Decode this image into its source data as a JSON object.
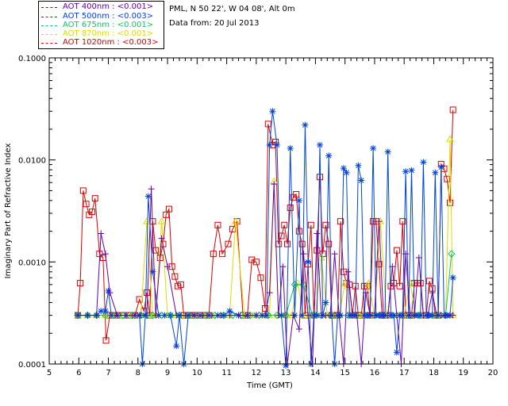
{
  "chart_data": {
    "type": "line",
    "title": "",
    "site": "PML, N 50 22', W 04 08', Alt 0m",
    "date": "Data from: 20 Jul 2013",
    "xlabel": "Time (GMT)",
    "ylabel": "Imaginary Part of Refractive Index",
    "xlim": [
      5,
      20
    ],
    "ylim": [
      0.0001,
      0.1
    ],
    "yscale": "log",
    "xticks": [
      "5",
      "6",
      "7",
      "8",
      "9",
      "10",
      "11",
      "12",
      "13",
      "14",
      "15",
      "16",
      "17",
      "18",
      "19",
      "20"
    ],
    "yticks": [
      "0.0001",
      "0.0010",
      "0.0100",
      "0.1000"
    ],
    "legend": [
      {
        "label": "AOT  400nm : <0.001>",
        "color": "#6600aa"
      },
      {
        "label": "AOT  500nm : <0.003>",
        "color": "#0044dd"
      },
      {
        "label": "AOT  675nm : <0.001>",
        "color": "#00cc66"
      },
      {
        "label": "AOT  870nm : <0.001>",
        "color": "#dddd00"
      },
      {
        "label": "AOT 1020nm : <0.003>",
        "color": "#dd0000"
      }
    ],
    "series": [
      {
        "name": "AOT 1020nm",
        "color": "#dd0000",
        "marker": "square",
        "x": [
          5.97,
          6.05,
          6.15,
          6.25,
          6.35,
          6.45,
          6.55,
          6.7,
          6.82,
          6.92,
          7.05,
          7.15,
          7.3,
          7.5,
          7.7,
          7.9,
          8.05,
          8.2,
          8.3,
          8.4,
          8.5,
          8.6,
          8.75,
          8.85,
          8.95,
          9.05,
          9.15,
          9.25,
          9.35,
          9.45,
          9.55,
          9.65,
          9.75,
          9.9,
          10.1,
          10.25,
          10.4,
          10.55,
          10.7,
          10.85,
          11.05,
          11.2,
          11.35,
          11.55,
          11.7,
          11.85,
          12.0,
          12.15,
          12.3,
          12.4,
          12.55,
          12.65,
          12.75,
          12.85,
          12.95,
          13.05,
          13.15,
          13.25,
          13.35,
          13.45,
          13.55,
          13.65,
          13.75,
          13.85,
          13.95,
          14.05,
          14.15,
          14.25,
          14.35,
          14.45,
          14.55,
          14.65,
          14.75,
          14.85,
          14.95,
          15.05,
          15.15,
          15.25,
          15.35,
          15.45,
          15.55,
          15.65,
          15.75,
          15.85,
          15.95,
          16.05,
          16.15,
          16.25,
          16.35,
          16.45,
          16.55,
          16.65,
          16.75,
          16.85,
          16.95,
          17.05,
          17.15,
          17.25,
          17.35,
          17.45,
          17.55,
          17.65,
          17.75,
          17.85,
          17.95,
          18.05,
          18.15,
          18.25,
          18.35,
          18.45,
          18.55,
          18.65
        ],
        "y": [
          0.0003,
          0.00062,
          0.005,
          0.0037,
          0.0029,
          0.0031,
          0.0042,
          0.0012,
          0.0011,
          0.00017,
          0.0003,
          0.0003,
          0.0003,
          0.0003,
          0.0003,
          0.0003,
          0.00043,
          0.00033,
          0.0005,
          0.0003,
          0.0025,
          0.0013,
          0.0011,
          0.0015,
          0.0029,
          0.0033,
          0.0009,
          0.00072,
          0.00058,
          0.0006,
          0.0003,
          0.0003,
          0.0003,
          0.0003,
          0.0003,
          0.0003,
          0.0003,
          0.0012,
          0.0023,
          0.0012,
          0.0015,
          0.0021,
          0.0025,
          0.0003,
          0.0003,
          0.00105,
          0.001,
          0.0007,
          0.00035,
          0.0225,
          0.014,
          0.015,
          0.0015,
          0.0018,
          0.0023,
          0.0015,
          0.0034,
          0.0043,
          0.0046,
          0.002,
          0.0015,
          0.0003,
          0.00095,
          0.0023,
          0.0003,
          0.0013,
          0.0068,
          0.0012,
          0.0023,
          0.0015,
          0.0003,
          0.0003,
          0.0003,
          0.0025,
          0.0008,
          0.00062,
          0.0006,
          0.0003,
          0.00058,
          0.0003,
          0.0003,
          0.00058,
          0.00058,
          0.0003,
          0.0025,
          0.0025,
          0.00095,
          0.0003,
          0.0003,
          0.0003,
          0.00058,
          0.00062,
          0.0013,
          0.00058,
          0.0025,
          0.0003,
          0.0003,
          0.0003,
          0.00062,
          0.00062,
          0.00062,
          0.0003,
          0.0003,
          0.00065,
          0.00055,
          0.0003,
          0.0003,
          0.0091,
          0.0082,
          0.0065,
          0.0038,
          0.031
        ]
      },
      {
        "name": "AOT 870nm",
        "color": "#dddd00",
        "marker": "triangle",
        "x": [
          5.97,
          6.3,
          6.6,
          6.9,
          7.2,
          7.5,
          7.8,
          8.1,
          8.3,
          8.5,
          8.6,
          8.8,
          9.0,
          9.3,
          9.6,
          9.9,
          10.2,
          10.5,
          10.8,
          11.1,
          11.3,
          11.6,
          11.9,
          12.2,
          12.45,
          12.6,
          12.75,
          12.9,
          13.05,
          13.2,
          13.4,
          13.6,
          13.8,
          14.0,
          14.2,
          14.4,
          14.6,
          14.8,
          15.0,
          15.2,
          15.4,
          15.6,
          15.8,
          16.0,
          16.2,
          16.4,
          16.6,
          16.8,
          17.0,
          17.2,
          17.4,
          17.6,
          17.8,
          18.0,
          18.2,
          18.4,
          18.55,
          18.65
        ],
        "y": [
          0.0003,
          0.0003,
          0.0003,
          0.0003,
          0.0003,
          0.0003,
          0.0003,
          0.0003,
          0.0025,
          0.0003,
          0.0003,
          0.0025,
          0.0003,
          0.0003,
          0.0003,
          0.0003,
          0.0003,
          0.0003,
          0.0003,
          0.0003,
          0.0025,
          0.0003,
          0.0003,
          0.0003,
          0.0003,
          0.0062,
          0.0003,
          0.0003,
          0.0003,
          0.0003,
          0.00062,
          0.0003,
          0.0003,
          0.0003,
          0.0011,
          0.0003,
          0.0003,
          0.0003,
          0.00062,
          0.0003,
          0.0003,
          0.0003,
          0.00062,
          0.0003,
          0.0025,
          0.0003,
          0.0003,
          0.0003,
          0.0003,
          0.00062,
          0.0003,
          0.0003,
          0.0003,
          0.0003,
          0.0003,
          0.0003,
          0.016,
          0.0003
        ]
      },
      {
        "name": "AOT 675nm",
        "color": "#00cc66",
        "marker": "diamond",
        "x": [
          5.97,
          6.3,
          6.6,
          6.9,
          7.2,
          7.5,
          7.8,
          8.1,
          8.3,
          8.5,
          8.8,
          9.1,
          9.4,
          9.7,
          10.0,
          10.3,
          10.6,
          10.9,
          11.2,
          11.5,
          11.8,
          12.1,
          12.4,
          12.7,
          13.0,
          13.3,
          13.6,
          13.9,
          14.2,
          14.5,
          14.8,
          15.1,
          15.4,
          15.7,
          16.0,
          16.3,
          16.6,
          16.9,
          17.2,
          17.5,
          17.8,
          18.1,
          18.4,
          18.6
        ],
        "y": [
          0.0003,
          0.0003,
          0.0003,
          0.0003,
          0.0003,
          0.0003,
          0.0003,
          0.0003,
          0.0003,
          0.0003,
          0.0003,
          0.0003,
          0.0003,
          0.0003,
          0.0003,
          0.0003,
          0.0003,
          0.0003,
          0.0003,
          0.0003,
          0.0003,
          0.0003,
          0.0003,
          0.0003,
          0.0003,
          0.0006,
          0.0006,
          0.0003,
          0.0003,
          0.0003,
          0.0003,
          0.0003,
          0.0003,
          0.0003,
          0.0003,
          0.0003,
          0.0003,
          0.0003,
          0.0003,
          0.0003,
          0.0003,
          0.0003,
          0.0003,
          0.0012
        ]
      },
      {
        "name": "AOT 500nm",
        "color": "#0044dd",
        "marker": "asterisk",
        "x": [
          5.97,
          6.3,
          6.6,
          6.75,
          6.9,
          7.0,
          7.1,
          7.3,
          7.6,
          7.9,
          8.05,
          8.15,
          8.25,
          8.35,
          8.5,
          8.7,
          8.9,
          9.1,
          9.3,
          9.4,
          9.55,
          9.7,
          9.9,
          10.1,
          10.4,
          10.7,
          10.9,
          11.1,
          11.4,
          11.7,
          12.0,
          12.2,
          12.35,
          12.45,
          12.55,
          12.7,
          12.85,
          13.0,
          13.15,
          13.3,
          13.45,
          13.55,
          13.65,
          13.75,
          13.85,
          13.95,
          14.05,
          14.15,
          14.25,
          14.35,
          14.45,
          14.55,
          14.65,
          14.75,
          14.85,
          14.95,
          15.05,
          15.15,
          15.25,
          15.35,
          15.45,
          15.55,
          15.65,
          15.75,
          15.85,
          15.95,
          16.05,
          16.15,
          16.25,
          16.35,
          16.45,
          16.55,
          16.65,
          16.75,
          16.85,
          16.95,
          17.05,
          17.15,
          17.25,
          17.35,
          17.45,
          17.55,
          17.65,
          17.75,
          17.85,
          17.95,
          18.05,
          18.15,
          18.25,
          18.35,
          18.45,
          18.55,
          18.65
        ],
        "y": [
          0.0003,
          0.0003,
          0.0003,
          0.00033,
          0.00033,
          0.00052,
          0.0003,
          0.0003,
          0.0003,
          0.0003,
          0.0003,
          0.0001,
          0.0003,
          0.0044,
          0.0008,
          0.0003,
          0.0003,
          0.0003,
          0.00015,
          0.0003,
          0.0001,
          0.0003,
          0.0003,
          0.0003,
          0.0003,
          0.0003,
          0.0003,
          0.00033,
          0.0003,
          0.0003,
          0.0003,
          0.0003,
          0.0003,
          0.014,
          0.03,
          0.014,
          0.0003,
          8e-05,
          0.013,
          0.0003,
          0.004,
          0.0003,
          0.022,
          0.001,
          0.0001,
          0.0003,
          0.0003,
          0.014,
          0.0003,
          0.0004,
          0.011,
          0.0003,
          0.0001,
          0.0003,
          0.0003,
          0.0083,
          0.0075,
          0.0003,
          0.0003,
          0.0003,
          0.0088,
          0.0063,
          0.0003,
          0.0003,
          0.0003,
          0.013,
          0.0003,
          0.0003,
          0.0003,
          0.0003,
          0.012,
          0.0003,
          0.0003,
          0.00013,
          0.0003,
          0.0003,
          0.0077,
          0.0003,
          0.0079,
          0.0003,
          0.0003,
          0.0003,
          0.0095,
          0.0003,
          0.0003,
          0.0003,
          0.0075,
          0.0003,
          0.0085,
          0.0003,
          0.0003,
          0.0003,
          0.0007
        ]
      },
      {
        "name": "AOT 400nm",
        "color": "#6600aa",
        "marker": "plus",
        "x": [
          5.97,
          6.3,
          6.6,
          6.75,
          6.9,
          7.05,
          7.3,
          7.6,
          7.9,
          8.1,
          8.3,
          8.45,
          8.6,
          8.8,
          9.0,
          9.3,
          9.6,
          9.9,
          10.2,
          10.5,
          10.8,
          11.1,
          11.4,
          11.7,
          12.0,
          12.3,
          12.45,
          12.6,
          12.75,
          12.9,
          13.05,
          13.25,
          13.45,
          13.6,
          13.75,
          13.9,
          14.05,
          14.2,
          14.35,
          14.5,
          14.65,
          14.8,
          14.95,
          15.1,
          15.25,
          15.4,
          15.55,
          15.7,
          15.85,
          16.0,
          16.15,
          16.3,
          16.45,
          16.6,
          16.75,
          16.9,
          17.05,
          17.2,
          17.35,
          17.5,
          17.65,
          17.8,
          17.95,
          18.1,
          18.25,
          18.4,
          18.55,
          18.65
        ],
        "y": [
          0.0003,
          0.0003,
          0.0003,
          0.0019,
          0.0012,
          0.0005,
          0.0003,
          0.0003,
          0.0003,
          0.0003,
          0.0003,
          0.0052,
          0.0003,
          0.0017,
          0.0009,
          0.0003,
          0.0003,
          0.0003,
          0.0003,
          0.0003,
          0.0003,
          0.0003,
          0.0003,
          0.0003,
          0.0003,
          0.0003,
          0.0005,
          0.0058,
          0.0003,
          0.0009,
          0.0001,
          0.0003,
          0.00022,
          0.0012,
          0.0003,
          0.0001,
          0.0019,
          0.0003,
          0.0003,
          0.0003,
          0.0012,
          0.0003,
          0.0001,
          0.0008,
          0.0003,
          0.0003,
          0.0001,
          0.0005,
          0.0003,
          0.0003,
          0.0025,
          0.0003,
          0.0003,
          0.0009,
          0.0003,
          0.0001,
          0.0012,
          0.0003,
          0.0003,
          0.0011,
          0.0003,
          0.0003,
          0.0005,
          0.0003,
          0.0003,
          0.0003,
          0.0003,
          0.0003
        ]
      }
    ]
  }
}
